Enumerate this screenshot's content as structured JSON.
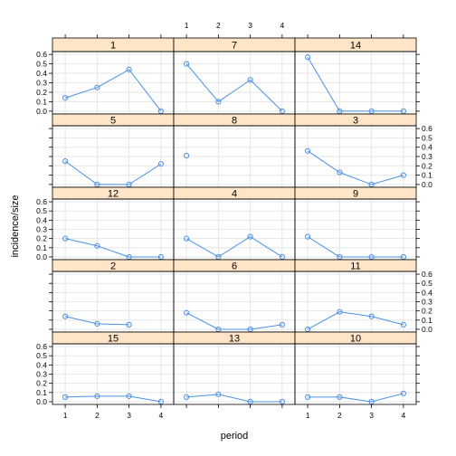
{
  "chart_data": {
    "type": "line",
    "xlabel": "period",
    "ylabel": "incidence/size",
    "x_ticks": [
      1,
      2,
      3,
      4
    ],
    "y_ticks": [
      "0.0",
      "0.1",
      "0.2",
      "0.3",
      "0.4",
      "0.5",
      "0.6"
    ],
    "ylim": [
      -0.03,
      0.63
    ],
    "xlim": [
      0.6,
      4.4
    ],
    "grid": true,
    "colors": {
      "line": "#4a90e2",
      "strip": "#ffe5c8",
      "grid": "#e6e6e6",
      "frame": "#000000"
    },
    "panels": [
      {
        "label": "1",
        "values": [
          0.14,
          0.25,
          0.44,
          0.0
        ]
      },
      {
        "label": "7",
        "values": [
          0.5,
          0.1,
          0.33,
          0.0
        ]
      },
      {
        "label": "14",
        "values": [
          0.57,
          0.0,
          0.0,
          0.0
        ]
      },
      {
        "label": "5",
        "values": [
          0.25,
          0.0,
          0.0,
          0.22
        ]
      },
      {
        "label": "8",
        "values": [
          0.31,
          null,
          null,
          null
        ]
      },
      {
        "label": "3",
        "values": [
          0.36,
          0.13,
          0.0,
          0.1
        ]
      },
      {
        "label": "12",
        "values": [
          0.2,
          0.12,
          0.0,
          0.0
        ]
      },
      {
        "label": "4",
        "values": [
          0.2,
          0.0,
          0.22,
          0.0
        ]
      },
      {
        "label": "9",
        "values": [
          0.22,
          0.0,
          0.0,
          0.0
        ]
      },
      {
        "label": "2",
        "values": [
          0.14,
          0.06,
          0.05,
          null
        ]
      },
      {
        "label": "6",
        "values": [
          0.18,
          0.0,
          0.0,
          0.05
        ]
      },
      {
        "label": "11",
        "values": [
          0.0,
          0.19,
          0.14,
          0.05
        ]
      },
      {
        "label": "15",
        "values": [
          0.05,
          0.06,
          0.06,
          0.0
        ]
      },
      {
        "label": "13",
        "values": [
          0.05,
          0.08,
          0.0,
          0.0
        ]
      },
      {
        "label": "10",
        "values": [
          0.05,
          0.05,
          0.0,
          0.09
        ]
      }
    ]
  }
}
